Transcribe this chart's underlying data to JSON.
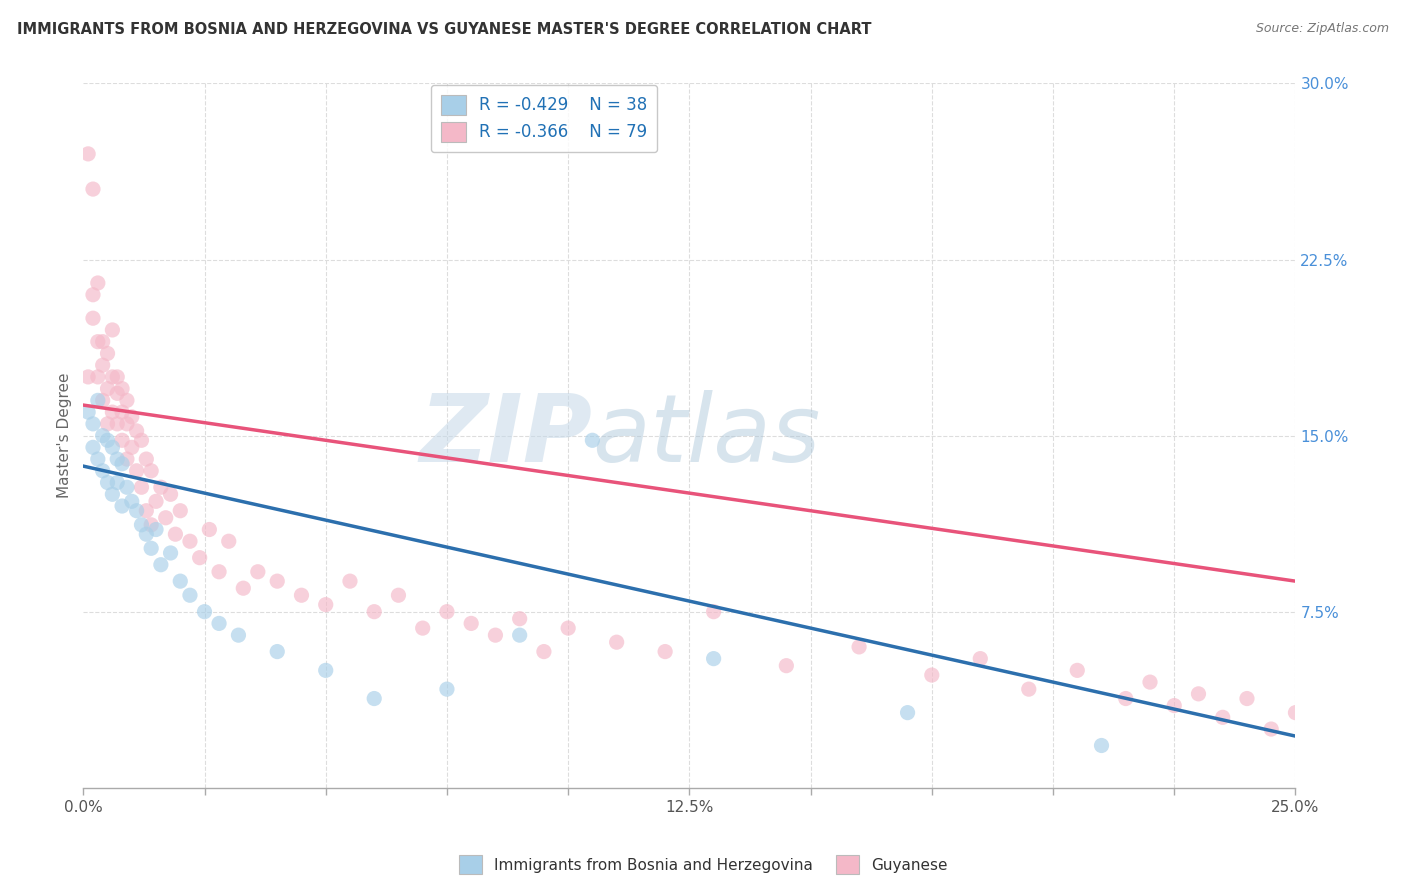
{
  "title": "IMMIGRANTS FROM BOSNIA AND HERZEGOVINA VS GUYANESE MASTER'S DEGREE CORRELATION CHART",
  "source": "Source: ZipAtlas.com",
  "ylabel": "Master's Degree",
  "xlim": [
    0.0,
    0.25
  ],
  "ylim": [
    0.0,
    0.3
  ],
  "blue_R": -0.429,
  "blue_N": 38,
  "pink_R": -0.366,
  "pink_N": 79,
  "blue_color": "#a8cfe8",
  "pink_color": "#f4b8c8",
  "blue_line_color": "#2c6fad",
  "pink_line_color": "#e8537a",
  "legend_label_blue": "Immigrants from Bosnia and Herzegovina",
  "legend_label_pink": "Guyanese",
  "blue_scatter_x": [
    0.001,
    0.002,
    0.002,
    0.003,
    0.003,
    0.004,
    0.004,
    0.005,
    0.005,
    0.006,
    0.006,
    0.007,
    0.007,
    0.008,
    0.008,
    0.009,
    0.01,
    0.011,
    0.012,
    0.013,
    0.014,
    0.015,
    0.016,
    0.018,
    0.02,
    0.022,
    0.025,
    0.028,
    0.032,
    0.04,
    0.05,
    0.06,
    0.075,
    0.09,
    0.105,
    0.13,
    0.17,
    0.21
  ],
  "blue_scatter_y": [
    0.16,
    0.155,
    0.145,
    0.165,
    0.14,
    0.15,
    0.135,
    0.148,
    0.13,
    0.145,
    0.125,
    0.14,
    0.13,
    0.138,
    0.12,
    0.128,
    0.122,
    0.118,
    0.112,
    0.108,
    0.102,
    0.11,
    0.095,
    0.1,
    0.088,
    0.082,
    0.075,
    0.07,
    0.065,
    0.058,
    0.05,
    0.038,
    0.042,
    0.065,
    0.148,
    0.055,
    0.032,
    0.018
  ],
  "pink_scatter_x": [
    0.001,
    0.001,
    0.002,
    0.002,
    0.002,
    0.003,
    0.003,
    0.003,
    0.004,
    0.004,
    0.004,
    0.005,
    0.005,
    0.005,
    0.006,
    0.006,
    0.006,
    0.007,
    0.007,
    0.007,
    0.008,
    0.008,
    0.008,
    0.009,
    0.009,
    0.009,
    0.01,
    0.01,
    0.011,
    0.011,
    0.012,
    0.012,
    0.013,
    0.013,
    0.014,
    0.014,
    0.015,
    0.016,
    0.017,
    0.018,
    0.019,
    0.02,
    0.022,
    0.024,
    0.026,
    0.028,
    0.03,
    0.033,
    0.036,
    0.04,
    0.045,
    0.05,
    0.055,
    0.06,
    0.065,
    0.07,
    0.075,
    0.08,
    0.085,
    0.09,
    0.095,
    0.1,
    0.11,
    0.12,
    0.13,
    0.145,
    0.16,
    0.175,
    0.185,
    0.195,
    0.205,
    0.215,
    0.22,
    0.225,
    0.23,
    0.235,
    0.24,
    0.245,
    0.25
  ],
  "pink_scatter_y": [
    0.175,
    0.27,
    0.2,
    0.255,
    0.21,
    0.19,
    0.175,
    0.215,
    0.18,
    0.165,
    0.19,
    0.17,
    0.185,
    0.155,
    0.175,
    0.16,
    0.195,
    0.168,
    0.155,
    0.175,
    0.16,
    0.148,
    0.17,
    0.155,
    0.165,
    0.14,
    0.158,
    0.145,
    0.152,
    0.135,
    0.148,
    0.128,
    0.14,
    0.118,
    0.135,
    0.112,
    0.122,
    0.128,
    0.115,
    0.125,
    0.108,
    0.118,
    0.105,
    0.098,
    0.11,
    0.092,
    0.105,
    0.085,
    0.092,
    0.088,
    0.082,
    0.078,
    0.088,
    0.075,
    0.082,
    0.068,
    0.075,
    0.07,
    0.065,
    0.072,
    0.058,
    0.068,
    0.062,
    0.058,
    0.075,
    0.052,
    0.06,
    0.048,
    0.055,
    0.042,
    0.05,
    0.038,
    0.045,
    0.035,
    0.04,
    0.03,
    0.038,
    0.025,
    0.032
  ],
  "watermark_zip_color": "#c8d8e8",
  "watermark_atlas_color": "#a0bcd0",
  "background_color": "#ffffff",
  "grid_color": "#dddddd",
  "blue_intercept": 0.137,
  "blue_slope": -0.46,
  "pink_intercept": 0.163,
  "pink_slope": -0.3
}
